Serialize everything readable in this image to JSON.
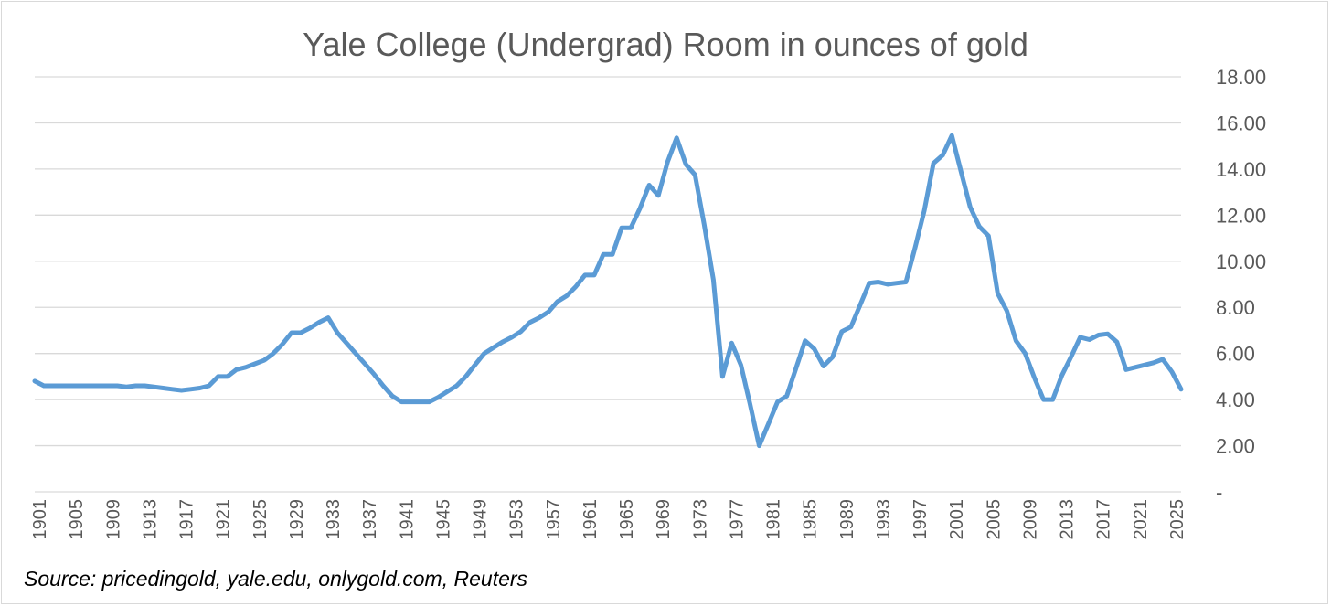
{
  "chart_data": {
    "type": "line",
    "title": "Yale College (Undergrad) Room in ounces of gold",
    "source": "Source: pricedingold, yale.edu, onlygold.com, Reuters",
    "xlabel": "",
    "ylabel": "",
    "ylim": [
      0,
      18
    ],
    "y_axis_position": "right",
    "grid": true,
    "legend": "none",
    "line_color": "#5b9bd5",
    "y_ticks": [
      {
        "value": 0,
        "label": "-"
      },
      {
        "value": 2,
        "label": "2.00"
      },
      {
        "value": 4,
        "label": "4.00"
      },
      {
        "value": 6,
        "label": "6.00"
      },
      {
        "value": 8,
        "label": "8.00"
      },
      {
        "value": 10,
        "label": "10.00"
      },
      {
        "value": 12,
        "label": "12.00"
      },
      {
        "value": 14,
        "label": "14.00"
      },
      {
        "value": 16,
        "label": "16.00"
      },
      {
        "value": 18,
        "label": "18.00"
      }
    ],
    "x_ticks": [
      "1901",
      "1905",
      "1909",
      "1913",
      "1917",
      "1921",
      "1925",
      "1929",
      "1933",
      "1937",
      "1941",
      "1945",
      "1949",
      "1953",
      "1957",
      "1961",
      "1965",
      "1969",
      "1973",
      "1977",
      "1981",
      "1985",
      "1989",
      "1993",
      "1997",
      "2001",
      "2005",
      "2009",
      "2013",
      "2017",
      "2021",
      "2025"
    ],
    "series": [
      {
        "values": [
          [
            1901,
            4.8
          ],
          [
            1902,
            4.6
          ],
          [
            1903,
            4.6
          ],
          [
            1904,
            4.6
          ],
          [
            1905,
            4.6
          ],
          [
            1906,
            4.6
          ],
          [
            1907,
            4.6
          ],
          [
            1908,
            4.6
          ],
          [
            1909,
            4.6
          ],
          [
            1910,
            4.6
          ],
          [
            1911,
            4.55
          ],
          [
            1912,
            4.6
          ],
          [
            1913,
            4.6
          ],
          [
            1914,
            4.55
          ],
          [
            1915,
            4.5
          ],
          [
            1916,
            4.45
          ],
          [
            1917,
            4.4
          ],
          [
            1918,
            4.45
          ],
          [
            1919,
            4.5
          ],
          [
            1920,
            4.6
          ],
          [
            1921,
            5.0
          ],
          [
            1922,
            5.0
          ],
          [
            1923,
            5.3
          ],
          [
            1924,
            5.4
          ],
          [
            1925,
            5.55
          ],
          [
            1926,
            5.7
          ],
          [
            1927,
            6.0
          ],
          [
            1928,
            6.4
          ],
          [
            1929,
            6.9
          ],
          [
            1930,
            6.9
          ],
          [
            1931,
            7.1
          ],
          [
            1932,
            7.35
          ],
          [
            1933,
            7.55
          ],
          [
            1934,
            6.9
          ],
          [
            1935,
            6.45
          ],
          [
            1936,
            6.0
          ],
          [
            1937,
            5.55
          ],
          [
            1938,
            5.1
          ],
          [
            1939,
            4.6
          ],
          [
            1940,
            4.15
          ],
          [
            1941,
            3.9
          ],
          [
            1942,
            3.9
          ],
          [
            1943,
            3.9
          ],
          [
            1944,
            3.9
          ],
          [
            1945,
            4.1
          ],
          [
            1946,
            4.35
          ],
          [
            1947,
            4.6
          ],
          [
            1948,
            5.0
          ],
          [
            1949,
            5.5
          ],
          [
            1950,
            6.0
          ],
          [
            1951,
            6.25
          ],
          [
            1952,
            6.5
          ],
          [
            1953,
            6.7
          ],
          [
            1954,
            6.95
          ],
          [
            1955,
            7.35
          ],
          [
            1956,
            7.55
          ],
          [
            1957,
            7.8
          ],
          [
            1958,
            8.25
          ],
          [
            1959,
            8.5
          ],
          [
            1960,
            8.9
          ],
          [
            1961,
            9.4
          ],
          [
            1962,
            9.4
          ],
          [
            1963,
            10.3
          ],
          [
            1964,
            10.3
          ],
          [
            1965,
            11.45
          ],
          [
            1966,
            11.45
          ],
          [
            1967,
            12.3
          ],
          [
            1968,
            13.3
          ],
          [
            1969,
            12.85
          ],
          [
            1970,
            14.3
          ],
          [
            1971,
            15.35
          ],
          [
            1972,
            14.2
          ],
          [
            1973,
            13.75
          ],
          [
            1974,
            11.6
          ],
          [
            1975,
            9.2
          ],
          [
            1976,
            5.0
          ],
          [
            1977,
            6.45
          ],
          [
            1978,
            5.5
          ],
          [
            1979,
            3.8
          ],
          [
            1980,
            2.0
          ],
          [
            1981,
            2.95
          ],
          [
            1982,
            3.9
          ],
          [
            1983,
            4.15
          ],
          [
            1984,
            5.35
          ],
          [
            1985,
            6.55
          ],
          [
            1986,
            6.2
          ],
          [
            1987,
            5.45
          ],
          [
            1988,
            5.85
          ],
          [
            1989,
            6.95
          ],
          [
            1990,
            7.15
          ],
          [
            1991,
            8.1
          ],
          [
            1992,
            9.05
          ],
          [
            1993,
            9.1
          ],
          [
            1994,
            9.0
          ],
          [
            1995,
            9.05
          ],
          [
            1996,
            9.1
          ],
          [
            1997,
            10.6
          ],
          [
            1998,
            12.2
          ],
          [
            1999,
            14.25
          ],
          [
            2000,
            14.6
          ],
          [
            2001,
            15.45
          ],
          [
            2002,
            13.9
          ],
          [
            2003,
            12.35
          ],
          [
            2004,
            11.5
          ],
          [
            2005,
            11.1
          ],
          [
            2006,
            8.6
          ],
          [
            2007,
            7.85
          ],
          [
            2008,
            6.55
          ],
          [
            2009,
            6.0
          ],
          [
            2010,
            4.95
          ],
          [
            2011,
            4.0
          ],
          [
            2012,
            4.0
          ],
          [
            2013,
            5.05
          ],
          [
            2014,
            5.85
          ],
          [
            2015,
            6.7
          ],
          [
            2016,
            6.6
          ],
          [
            2017,
            6.8
          ],
          [
            2018,
            6.85
          ],
          [
            2019,
            6.5
          ],
          [
            2020,
            5.3
          ],
          [
            2021,
            5.4
          ],
          [
            2022,
            5.5
          ],
          [
            2023,
            5.6
          ],
          [
            2024,
            5.75
          ],
          [
            2025,
            5.2
          ],
          [
            2026,
            4.45
          ]
        ]
      }
    ]
  }
}
